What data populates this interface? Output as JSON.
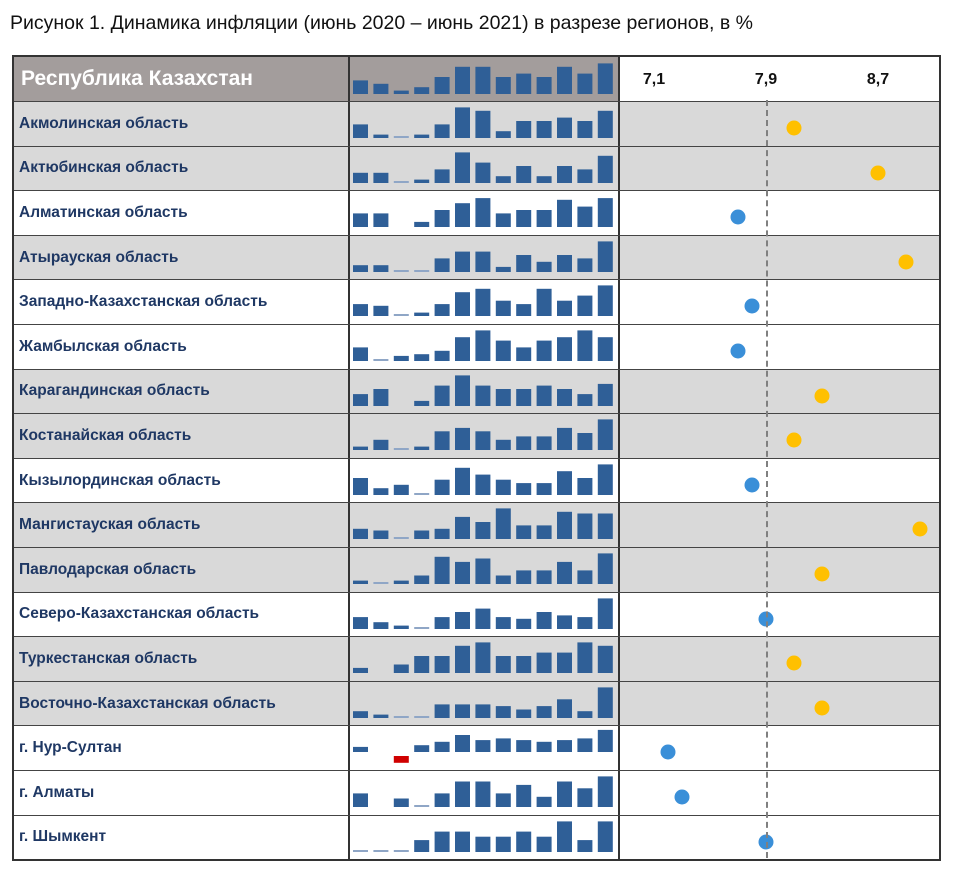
{
  "title": "Рисунок 1. Динамика инфляции (июнь 2020 – июнь 2021) в разрезе регионов, в %",
  "chart_data": {
    "type": "table",
    "title": "Рисунок 1. Динамика инфляции (июнь 2020 – июнь 2021) в разрезе регионов, в %",
    "header": {
      "label": "Республика Казахстан",
      "sparkline": [
        0.4,
        0.3,
        0.1,
        0.2,
        0.5,
        0.8,
        0.8,
        0.5,
        0.6,
        0.5,
        0.8,
        0.6,
        0.9
      ]
    },
    "dot_axis": {
      "ticks": [
        "7,1",
        "7,9",
        "8,7"
      ],
      "tick_values": [
        7.1,
        7.9,
        8.7
      ],
      "reference_value": 7.9,
      "reference_style": "dashed"
    },
    "colors": {
      "above": "#ffc000",
      "below": "#3a8fd8",
      "bar": "#2f5f97",
      "bar_light": "#8fa6c6",
      "negative": "#d00000",
      "row_highlight": "#d9d9d9",
      "header_bg": "#a39d9c"
    },
    "rows": [
      {
        "name": "Акмолинская область",
        "value": 8.1,
        "sparkline": [
          0.4,
          0.1,
          0.04,
          0.1,
          0.4,
          0.9,
          0.8,
          0.2,
          0.5,
          0.5,
          0.6,
          0.5,
          0.8
        ]
      },
      {
        "name": "Актюбинская область",
        "value": 8.7,
        "sparkline": [
          0.3,
          0.3,
          0.05,
          0.1,
          0.4,
          0.9,
          0.6,
          0.2,
          0.5,
          0.2,
          0.5,
          0.4,
          0.8
        ]
      },
      {
        "name": "Алматинская область",
        "value": 7.7,
        "sparkline": [
          0.4,
          0.4,
          0,
          0.15,
          0.5,
          0.7,
          0.85,
          0.4,
          0.5,
          0.5,
          0.8,
          0.6,
          0.85
        ]
      },
      {
        "name": "Атырауская область",
        "value": 8.9,
        "sparkline": [
          0.2,
          0.2,
          0.05,
          0.05,
          0.4,
          0.6,
          0.6,
          0.15,
          0.5,
          0.3,
          0.5,
          0.4,
          0.9
        ]
      },
      {
        "name": "Западно-Казахстанская область",
        "value": 7.8,
        "sparkline": [
          0.35,
          0.3,
          0.05,
          0.1,
          0.35,
          0.7,
          0.8,
          0.45,
          0.35,
          0.8,
          0.45,
          0.6,
          0.9
        ]
      },
      {
        "name": "Жамбылская область",
        "value": 7.7,
        "sparkline": [
          0.4,
          0.05,
          0.15,
          0.2,
          0.3,
          0.7,
          0.9,
          0.6,
          0.4,
          0.6,
          0.7,
          0.9,
          0.7
        ]
      },
      {
        "name": "Карагандинская область",
        "value": 8.3,
        "sparkline": [
          0.35,
          0.5,
          0,
          0.15,
          0.6,
          0.9,
          0.6,
          0.5,
          0.5,
          0.6,
          0.5,
          0.35,
          0.65
        ]
      },
      {
        "name": "Костанайская область",
        "value": 8.1,
        "sparkline": [
          0.1,
          0.3,
          0.05,
          0.1,
          0.55,
          0.65,
          0.55,
          0.3,
          0.4,
          0.4,
          0.65,
          0.5,
          0.9
        ]
      },
      {
        "name": "Кызылординская область",
        "value": 7.8,
        "sparkline": [
          0.5,
          0.2,
          0.3,
          0.05,
          0.45,
          0.8,
          0.6,
          0.45,
          0.35,
          0.35,
          0.7,
          0.5,
          0.9
        ]
      },
      {
        "name": "Мангистауская область",
        "value": 9.0,
        "sparkline": [
          0.3,
          0.25,
          0.05,
          0.25,
          0.3,
          0.65,
          0.5,
          0.9,
          0.4,
          0.4,
          0.8,
          0.75,
          0.75
        ]
      },
      {
        "name": "Павлодарская область",
        "value": 8.3,
        "sparkline": [
          0.1,
          0.05,
          0.1,
          0.25,
          0.8,
          0.65,
          0.75,
          0.25,
          0.4,
          0.4,
          0.65,
          0.4,
          0.9
        ]
      },
      {
        "name": "Северо-Казахстанская область",
        "value": 7.9,
        "sparkline": [
          0.35,
          0.2,
          0.1,
          0.05,
          0.35,
          0.5,
          0.6,
          0.35,
          0.3,
          0.5,
          0.4,
          0.35,
          0.9
        ]
      },
      {
        "name": "Туркестанская область",
        "value": 8.1,
        "sparkline": [
          0.15,
          0,
          0.25,
          0.5,
          0.5,
          0.8,
          0.9,
          0.5,
          0.5,
          0.6,
          0.6,
          0.9,
          0.8
        ]
      },
      {
        "name": "Восточно-Казахстанская область",
        "value": 8.3,
        "sparkline": [
          0.2,
          0.1,
          0.05,
          0.05,
          0.4,
          0.4,
          0.4,
          0.35,
          0.25,
          0.35,
          0.55,
          0.2,
          0.9
        ]
      },
      {
        "name": "г. Нур-Султан",
        "value": 7.2,
        "sparkline": [
          0.15,
          0,
          -0.2,
          0.2,
          0.3,
          0.5,
          0.35,
          0.4,
          0.35,
          0.3,
          0.35,
          0.4,
          0.65
        ]
      },
      {
        "name": "г. Алматы",
        "value": 7.3,
        "sparkline": [
          0.4,
          0,
          0.25,
          0.05,
          0.4,
          0.75,
          0.75,
          0.4,
          0.65,
          0.3,
          0.75,
          0.55,
          0.9
        ]
      },
      {
        "name": "г. Шымкент",
        "value": 7.9,
        "sparkline": [
          0.03,
          0.03,
          0.03,
          0.35,
          0.6,
          0.6,
          0.45,
          0.45,
          0.6,
          0.45,
          0.9,
          0.35,
          0.9
        ]
      }
    ]
  }
}
